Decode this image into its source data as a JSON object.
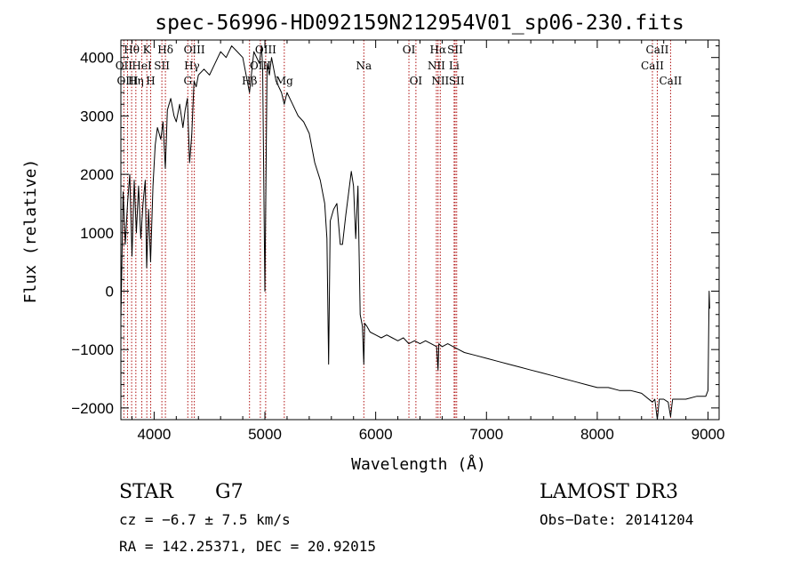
{
  "chart_data": {
    "type": "line",
    "title": "spec-56996-HD092159N212954V01_sp06-230.fits",
    "xlabel": "Wavelength (Å)",
    "ylabel": "Flux (relative)",
    "xlim": [
      3700,
      9100
    ],
    "ylim": [
      -2200,
      4300
    ],
    "x_ticks": [
      4000,
      5000,
      6000,
      7000,
      8000,
      9000
    ],
    "y_ticks": [
      -2000,
      -1000,
      0,
      1000,
      2000,
      3000,
      4000
    ],
    "x_tick_labels": [
      "4000",
      "5000",
      "6000",
      "7000",
      "8000",
      "9000"
    ],
    "y_tick_labels": [
      "−2000",
      "−1000",
      "0",
      "1000",
      "2000",
      "3000",
      "4000"
    ],
    "series": [
      {
        "name": "spectrum",
        "x": [
          3700,
          3720,
          3740,
          3760,
          3780,
          3800,
          3820,
          3840,
          3860,
          3880,
          3900,
          3920,
          3933,
          3950,
          3968,
          3990,
          4010,
          4030,
          4060,
          4080,
          4101,
          4120,
          4150,
          4180,
          4200,
          4230,
          4260,
          4280,
          4300,
          4320,
          4340,
          4360,
          4380,
          4400,
          4450,
          4500,
          4550,
          4600,
          4650,
          4700,
          4750,
          4800,
          4861,
          4900,
          4950,
          4970,
          4980,
          5000,
          5020,
          5040,
          5060,
          5100,
          5150,
          5175,
          5200,
          5250,
          5300,
          5350,
          5400,
          5450,
          5500,
          5540,
          5560,
          5575,
          5590,
          5620,
          5650,
          5680,
          5700,
          5730,
          5750,
          5780,
          5800,
          5820,
          5840,
          5860,
          5880,
          5893,
          5900,
          5920,
          5950,
          6000,
          6050,
          6100,
          6150,
          6200,
          6250,
          6300,
          6350,
          6400,
          6450,
          6500,
          6550,
          6563,
          6570,
          6600,
          6650,
          6700,
          6750,
          6800,
          6900,
          7000,
          7100,
          7200,
          7300,
          7400,
          7500,
          7600,
          7700,
          7800,
          7900,
          8000,
          8100,
          8200,
          8300,
          8400,
          8498,
          8520,
          8542,
          8560,
          8600,
          8640,
          8662,
          8680,
          8700,
          8800,
          8900,
          8980,
          9000,
          9010,
          9015
        ],
        "y": [
          -500,
          1700,
          800,
          1500,
          2000,
          600,
          1900,
          1000,
          1800,
          900,
          1500,
          1900,
          400,
          1400,
          500,
          1800,
          2500,
          2800,
          2600,
          2900,
          2100,
          3100,
          3300,
          3000,
          2900,
          3200,
          2800,
          3100,
          3300,
          2200,
          2700,
          3600,
          3500,
          3700,
          3800,
          3700,
          3900,
          4100,
          4000,
          4200,
          4100,
          4000,
          3400,
          4100,
          3900,
          4200,
          3800,
          0,
          3900,
          3700,
          4000,
          3600,
          3400,
          3200,
          3400,
          3200,
          3000,
          2900,
          2700,
          2200,
          1900,
          1500,
          900,
          -1250,
          1200,
          1400,
          1500,
          800,
          800,
          1300,
          1600,
          2050,
          1800,
          900,
          1800,
          -400,
          -600,
          -1250,
          -550,
          -600,
          -700,
          -750,
          -800,
          -750,
          -800,
          -850,
          -800,
          -900,
          -850,
          -900,
          -850,
          -900,
          -950,
          -1350,
          -900,
          -950,
          -900,
          -950,
          -1000,
          -1050,
          -1100,
          -1150,
          -1200,
          -1250,
          -1300,
          -1350,
          -1400,
          -1450,
          -1500,
          -1550,
          -1600,
          -1650,
          -1650,
          -1700,
          -1700,
          -1750,
          -1900,
          -1850,
          -2200,
          -1850,
          -1850,
          -1900,
          -2150,
          -1850,
          -1850,
          -1850,
          -1800,
          -1800,
          -1700,
          0,
          -300
        ]
      }
    ],
    "line_markers": [
      {
        "label": "Hθ",
        "x": 3797,
        "row": 0
      },
      {
        "label": "OII",
        "x": 3727,
        "row": 1
      },
      {
        "label": "OIII",
        "x": 3760,
        "row": 2
      },
      {
        "label": "Hη",
        "x": 3835,
        "row": 2
      },
      {
        "label": "HeI",
        "x": 3889,
        "row": 1
      },
      {
        "label": "K",
        "x": 3934,
        "row": 0
      },
      {
        "label": "SII",
        "x": 4070,
        "row": 1
      },
      {
        "label": "H",
        "x": 3969,
        "row": 2
      },
      {
        "label": "Hδ",
        "x": 4102,
        "row": 0
      },
      {
        "label": "G",
        "x": 4304,
        "row": 2
      },
      {
        "label": "Hγ",
        "x": 4341,
        "row": 1
      },
      {
        "label": "OIII",
        "x": 4363,
        "row": 0
      },
      {
        "label": "Hβ",
        "x": 4861,
        "row": 2
      },
      {
        "label": "OIII",
        "x": 4959,
        "row": 1
      },
      {
        "label": "OIII",
        "x": 5007,
        "row": 0
      },
      {
        "label": "Mg",
        "x": 5175,
        "row": 2
      },
      {
        "label": "Na",
        "x": 5893,
        "row": 1
      },
      {
        "label": "OI",
        "x": 6300,
        "row": 0
      },
      {
        "label": "OI",
        "x": 6363,
        "row": 2
      },
      {
        "label": "NII",
        "x": 6548,
        "row": 1
      },
      {
        "label": "Hα",
        "x": 6563,
        "row": 0
      },
      {
        "label": "NII",
        "x": 6583,
        "row": 2
      },
      {
        "label": "Li",
        "x": 6708,
        "row": 1
      },
      {
        "label": "SII",
        "x": 6717,
        "row": 0
      },
      {
        "label": "SII",
        "x": 6731,
        "row": 2
      },
      {
        "label": "CaII",
        "x": 8498,
        "row": 1
      },
      {
        "label": "CaII",
        "x": 8542,
        "row": 0
      },
      {
        "label": "CaII",
        "x": 8662,
        "row": 2
      }
    ],
    "colors": {
      "spectrum": "#000000",
      "marker": "#b01010",
      "axes": "#000000"
    }
  },
  "info": {
    "object_class": "STAR",
    "subclass": "G7",
    "survey": "LAMOST DR3",
    "redshift": "cz = −6.7 ± 7.5 km/s",
    "obs_date": "Obs−Date: 20141204",
    "coords": "RA = 142.25371, DEC =  20.92015"
  }
}
